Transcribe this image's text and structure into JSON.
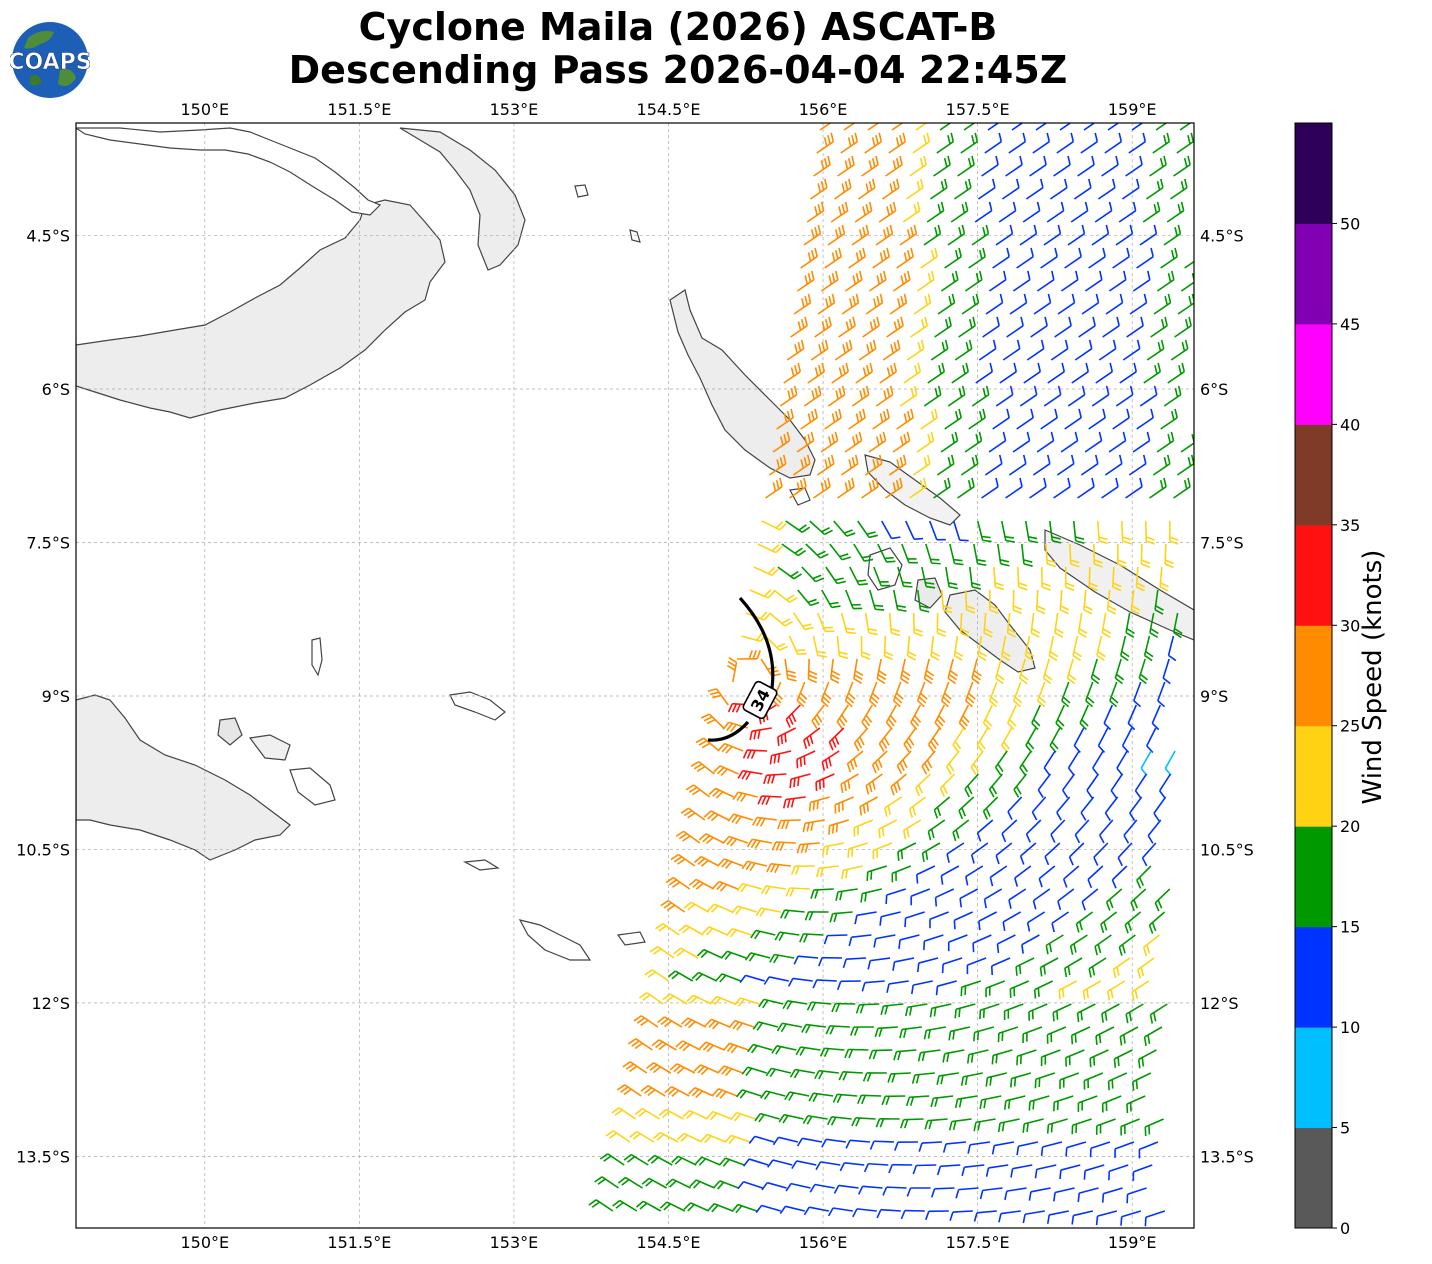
{
  "title": {
    "line1": "Cyclone Maila (2026) ASCAT-B",
    "line2": "Descending Pass 2026-04-04 22:45Z"
  },
  "logo": {
    "text": "COAPS",
    "icon": "globe-logo-icon"
  },
  "map": {
    "lon_range": [
      148.75,
      159.6
    ],
    "lat_range": [
      -14.2,
      -3.4
    ],
    "lon_ticks": [
      "150°E",
      "151.5°E",
      "153°E",
      "154.5°E",
      "156°E",
      "157.5°E",
      "159°E"
    ],
    "lon_tick_values": [
      150,
      151.5,
      153,
      154.5,
      156,
      157.5,
      159
    ],
    "lat_ticks": [
      "4.5°S",
      "6°S",
      "7.5°S",
      "9°S",
      "10.5°S",
      "12°S",
      "13.5°S"
    ],
    "lat_tick_values": [
      -4.5,
      -6,
      -7.5,
      -9,
      -10.5,
      -12,
      -13.5
    ],
    "grid": true,
    "contour_label": "34",
    "land_color": "#ffffff",
    "coast_color": "#555555"
  },
  "colorbar": {
    "label": "Wind Speed (knots)",
    "ticks": [
      "0",
      "5",
      "10",
      "15",
      "20",
      "25",
      "30",
      "35",
      "40",
      "45",
      "50"
    ],
    "bins": [
      {
        "from": 0,
        "to": 5,
        "color": "#595959"
      },
      {
        "from": 5,
        "to": 10,
        "color": "#00bfff"
      },
      {
        "from": 10,
        "to": 15,
        "color": "#0033ff"
      },
      {
        "from": 15,
        "to": 20,
        "color": "#009900"
      },
      {
        "from": 20,
        "to": 25,
        "color": "#ffd314"
      },
      {
        "from": 25,
        "to": 30,
        "color": "#ff8c00"
      },
      {
        "from": 30,
        "to": 35,
        "color": "#ff1111"
      },
      {
        "from": 35,
        "to": 40,
        "color": "#7f3a28"
      },
      {
        "from": 40,
        "to": 45,
        "color": "#ff00ff"
      },
      {
        "from": 45,
        "to": 50,
        "color": "#8200b3"
      },
      {
        "from": 50,
        "to": 55,
        "color": "#2e005a"
      }
    ]
  }
}
